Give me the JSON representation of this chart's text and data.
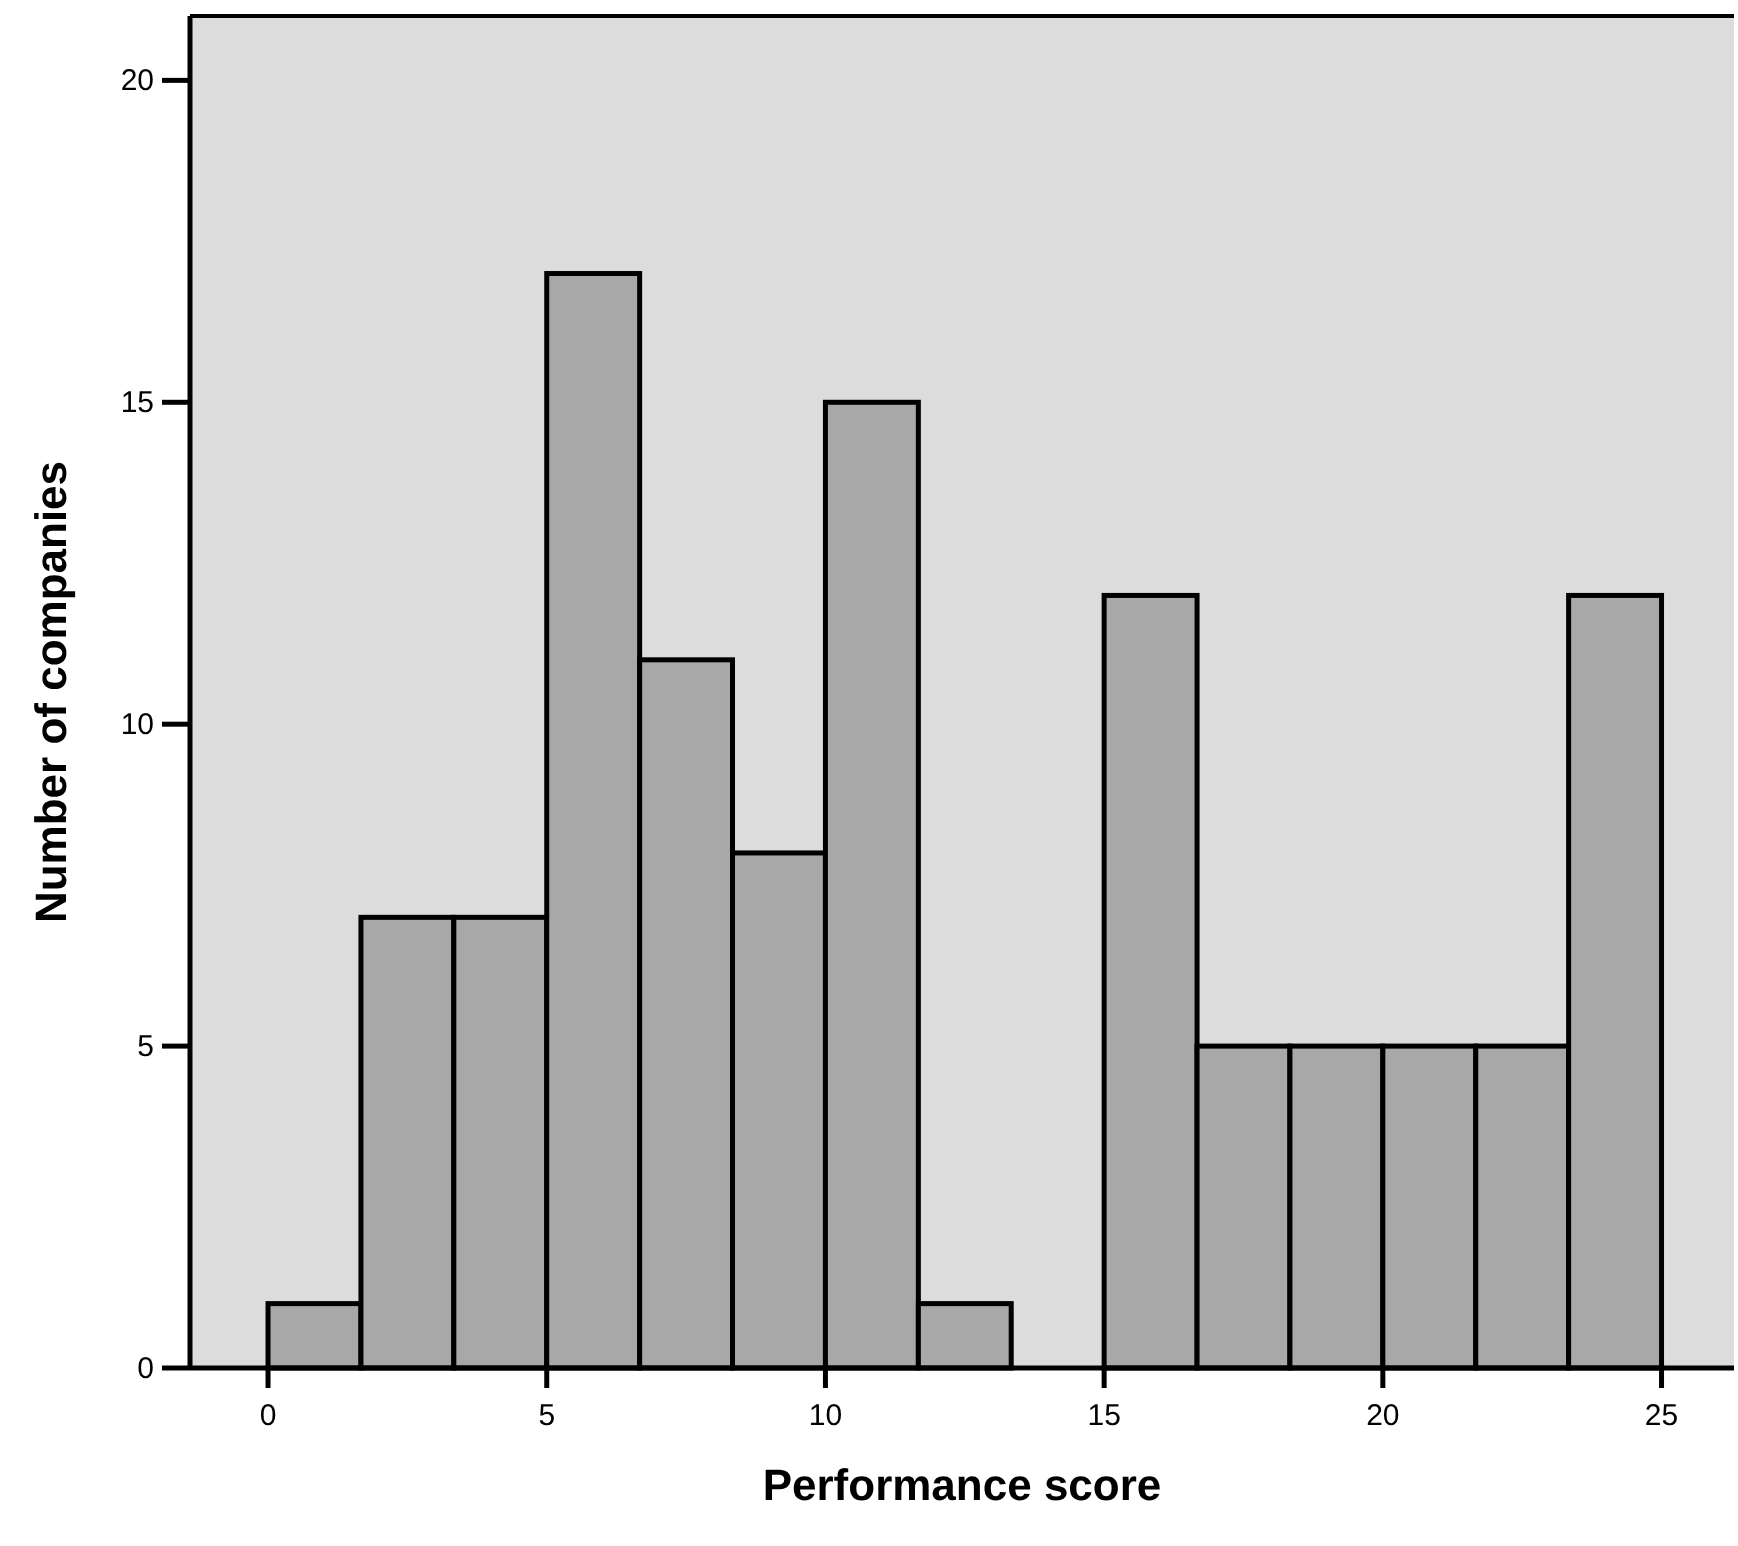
{
  "chart_data": {
    "type": "histogram",
    "xlabel": "Performance score",
    "ylabel": "Number of companies",
    "bins": [
      0,
      1.667,
      3.333,
      5,
      6.667,
      8.333,
      10,
      11.667,
      13.333,
      15,
      16.667,
      18.333,
      20,
      21.667,
      23.333,
      25
    ],
    "values": [
      1,
      7,
      7,
      17,
      11,
      8,
      15,
      1,
      0,
      12,
      5,
      5,
      5,
      5,
      12
    ],
    "color": "#a8a8a8",
    "xlim": [
      -1.4,
      26.3
    ],
    "xticks": [
      0,
      5,
      10,
      15,
      20,
      25
    ],
    "ylim": [
      0,
      21
    ],
    "yticks": [
      0,
      5,
      10,
      15,
      20
    ],
    "grid": false
  }
}
